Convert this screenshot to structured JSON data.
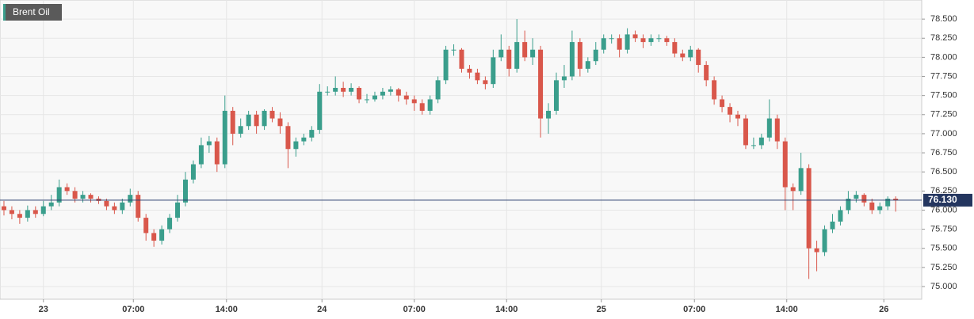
{
  "chart_data": {
    "type": "candlestick",
    "title": "Brent Oil",
    "x": [
      0,
      1,
      2,
      3,
      4,
      5,
      6,
      7,
      8,
      9,
      10,
      11,
      12,
      13,
      14,
      15,
      16,
      17,
      18,
      19,
      20,
      21,
      22,
      23,
      24,
      25,
      26,
      27,
      28,
      29,
      30,
      31,
      32,
      33,
      34,
      35,
      36,
      37,
      38,
      39,
      40,
      41,
      42,
      43,
      44,
      45,
      46,
      47,
      48,
      49,
      50,
      51,
      52,
      53,
      54,
      55,
      56,
      57,
      58,
      59,
      60,
      61,
      62,
      63,
      64,
      65,
      66,
      67,
      68,
      69,
      70,
      71,
      72,
      73,
      74,
      75,
      76,
      77,
      78,
      79,
      80,
      81,
      82,
      83,
      84,
      85,
      86,
      87,
      88,
      89,
      90,
      91,
      92,
      93,
      94,
      95,
      96,
      97,
      98,
      99,
      100,
      101,
      102,
      103,
      104,
      105,
      106,
      107,
      108,
      109,
      110,
      111,
      112,
      113
    ],
    "open": [
      76.05,
      76.0,
      75.95,
      75.9,
      76.0,
      75.95,
      76.05,
      76.1,
      76.3,
      76.25,
      76.15,
      76.2,
      76.15,
      76.12,
      76.05,
      76.0,
      76.1,
      76.2,
      75.9,
      75.7,
      75.6,
      75.75,
      75.9,
      76.1,
      76.4,
      76.6,
      76.85,
      76.9,
      76.6,
      77.3,
      77.0,
      77.1,
      77.25,
      77.1,
      77.3,
      77.2,
      77.1,
      76.8,
      76.9,
      76.95,
      77.05,
      77.55,
      77.55,
      77.6,
      77.55,
      77.6,
      77.45,
      77.45,
      77.5,
      77.55,
      77.58,
      77.5,
      77.45,
      77.4,
      77.3,
      77.45,
      77.7,
      78.1,
      78.1,
      77.85,
      77.8,
      77.7,
      77.65,
      78.0,
      78.1,
      77.85,
      78.2,
      78.0,
      78.1,
      77.2,
      77.3,
      77.7,
      77.75,
      78.2,
      77.85,
      77.95,
      78.1,
      78.25,
      78.25,
      78.1,
      78.3,
      78.25,
      78.2,
      78.25,
      78.25,
      78.2,
      78.05,
      78.0,
      78.1,
      77.9,
      77.7,
      77.45,
      77.35,
      77.25,
      77.2,
      76.85,
      76.85,
      76.95,
      77.2,
      76.9,
      76.3,
      76.25,
      76.55,
      75.5,
      75.45,
      75.75,
      75.85,
      76.0,
      76.15,
      76.2,
      76.1,
      76.0,
      76.05,
      76.15
    ],
    "high": [
      76.12,
      76.05,
      76.0,
      76.06,
      76.05,
      76.12,
      76.2,
      76.4,
      76.35,
      76.3,
      76.25,
      76.22,
      76.18,
      76.15,
      76.1,
      76.15,
      76.28,
      76.25,
      75.95,
      75.75,
      75.8,
      75.95,
      76.2,
      76.5,
      76.65,
      76.95,
      76.97,
      76.95,
      77.5,
      77.35,
      77.2,
      77.3,
      77.3,
      77.32,
      77.35,
      77.28,
      77.15,
      76.95,
      77.0,
      77.1,
      77.65,
      77.62,
      77.75,
      77.68,
      77.66,
      77.62,
      77.52,
      77.55,
      77.6,
      77.62,
      77.6,
      77.55,
      77.5,
      77.45,
      77.5,
      77.75,
      78.15,
      78.17,
      78.12,
      77.9,
      77.85,
      77.75,
      78.1,
      78.3,
      78.15,
      78.5,
      78.35,
      78.25,
      78.15,
      77.4,
      77.8,
      77.9,
      78.35,
      78.25,
      78.0,
      78.2,
      78.3,
      78.3,
      78.3,
      78.38,
      78.35,
      78.3,
      78.3,
      78.3,
      78.28,
      78.25,
      78.1,
      78.15,
      78.12,
      77.95,
      77.75,
      77.5,
      77.4,
      77.3,
      77.25,
      76.95,
      77.0,
      77.45,
      77.25,
      76.95,
      76.35,
      76.75,
      76.6,
      75.6,
      75.8,
      75.95,
      76.05,
      76.25,
      76.25,
      76.22,
      76.15,
      76.1,
      76.18,
      76.18
    ],
    "low": [
      75.93,
      75.88,
      75.82,
      75.85,
      75.9,
      75.92,
      76.0,
      76.05,
      76.2,
      76.1,
      76.1,
      76.1,
      76.08,
      76.0,
      75.95,
      75.95,
      76.05,
      75.85,
      75.6,
      75.52,
      75.55,
      75.7,
      75.85,
      76.05,
      76.35,
      76.55,
      76.75,
      76.5,
      76.55,
      76.85,
      76.95,
      77.05,
      77.0,
      77.05,
      77.15,
      77.0,
      76.55,
      76.7,
      76.85,
      76.9,
      77.0,
      77.5,
      77.5,
      77.48,
      77.5,
      77.4,
      77.4,
      77.42,
      77.45,
      77.5,
      77.42,
      77.38,
      77.3,
      77.25,
      77.25,
      77.4,
      77.65,
      78.02,
      77.8,
      77.72,
      77.65,
      77.58,
      77.6,
      77.95,
      77.75,
      77.8,
      77.95,
      77.9,
      76.95,
      77.0,
      77.25,
      77.6,
      77.7,
      77.75,
      77.8,
      77.9,
      78.05,
      78.18,
      78.0,
      78.05,
      78.2,
      78.12,
      78.15,
      78.2,
      78.15,
      78.0,
      77.95,
      77.95,
      77.8,
      77.62,
      77.38,
      77.28,
      77.15,
      77.1,
      76.8,
      76.8,
      76.8,
      76.9,
      76.8,
      76.0,
      76.0,
      76.2,
      75.1,
      75.2,
      75.4,
      75.7,
      75.8,
      75.95,
      76.1,
      76.05,
      75.95,
      75.95,
      76.0,
      75.98
    ],
    "close": [
      76.0,
      75.95,
      75.9,
      76.0,
      75.95,
      76.05,
      76.1,
      76.3,
      76.25,
      76.15,
      76.2,
      76.15,
      76.12,
      76.05,
      76.0,
      76.1,
      76.2,
      75.9,
      75.7,
      75.6,
      75.75,
      75.9,
      76.1,
      76.4,
      76.6,
      76.85,
      76.9,
      76.6,
      77.3,
      77.0,
      77.1,
      77.25,
      77.1,
      77.3,
      77.2,
      77.1,
      76.8,
      76.9,
      76.95,
      77.05,
      77.55,
      77.55,
      77.6,
      77.55,
      77.6,
      77.45,
      77.45,
      77.5,
      77.55,
      77.58,
      77.5,
      77.45,
      77.4,
      77.3,
      77.45,
      77.7,
      78.1,
      78.1,
      77.85,
      77.8,
      77.7,
      77.65,
      78.0,
      78.1,
      77.85,
      78.2,
      78.0,
      78.1,
      77.2,
      77.3,
      77.7,
      77.75,
      78.2,
      77.85,
      77.95,
      78.1,
      78.25,
      78.25,
      78.1,
      78.3,
      78.25,
      78.2,
      78.25,
      78.25,
      78.2,
      78.05,
      78.0,
      78.1,
      77.9,
      77.7,
      77.45,
      77.35,
      77.25,
      77.2,
      76.85,
      76.85,
      76.95,
      77.2,
      76.9,
      76.3,
      76.25,
      76.55,
      75.5,
      75.45,
      75.75,
      75.85,
      76.0,
      76.15,
      76.2,
      76.1,
      76.0,
      76.05,
      76.15,
      76.13
    ],
    "up_color": "#3a9e8c",
    "down_color": "#d9574b",
    "xlim": [
      -0.5,
      116.3
    ],
    "xticks": [
      {
        "value": 5,
        "label": "23"
      },
      {
        "value": 16.4,
        "label": "07:00"
      },
      {
        "value": 28.2,
        "label": "14:00"
      },
      {
        "value": 40.3,
        "label": "24"
      },
      {
        "value": 52,
        "label": "07:00"
      },
      {
        "value": 63.7,
        "label": "14:00"
      },
      {
        "value": 75.7,
        "label": "25"
      },
      {
        "value": 87.5,
        "label": "07:00"
      },
      {
        "value": 99.2,
        "label": "14:00"
      },
      {
        "value": 111.5,
        "label": "26"
      }
    ],
    "ylim": [
      74.834,
      78.75
    ],
    "yticks": [
      {
        "value": 75,
        "label": "75.000"
      },
      {
        "value": 75.25,
        "label": "75.250"
      },
      {
        "value": 75.5,
        "label": "75.500"
      },
      {
        "value": 75.75,
        "label": "75.750"
      },
      {
        "value": 76,
        "label": "76.000"
      },
      {
        "value": 76.25,
        "label": "76.250"
      },
      {
        "value": 76.5,
        "label": "76.500"
      },
      {
        "value": 76.75,
        "label": "76.750"
      },
      {
        "value": 77,
        "label": "77.000"
      },
      {
        "value": 77.25,
        "label": "77.250"
      },
      {
        "value": 77.5,
        "label": "77.500"
      },
      {
        "value": 77.75,
        "label": "77.750"
      },
      {
        "value": 78,
        "label": "78.000"
      },
      {
        "value": 78.25,
        "label": "78.250"
      },
      {
        "value": 78.5,
        "label": "78.500"
      }
    ],
    "last_price": {
      "value": 76.13,
      "label": "76.130"
    },
    "grid": true
  }
}
